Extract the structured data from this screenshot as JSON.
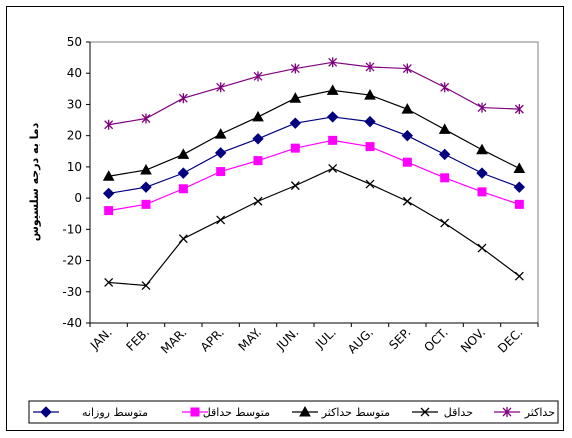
{
  "chart_data": {
    "type": "line",
    "title": "",
    "xlabel": "",
    "ylabel": "دما به درجه سلسيوس",
    "ylim": [
      -40,
      50
    ],
    "yticks": [
      50,
      40,
      30,
      20,
      10,
      0,
      -10,
      -20,
      -30,
      -40
    ],
    "categories": [
      "JAN.",
      "FEB.",
      "MAR.",
      "APR.",
      "MAY.",
      "JUN.",
      "JUL.",
      "AUG.",
      "SEP.",
      "OCT.",
      "NOV.",
      "DEC."
    ],
    "grid": false,
    "legend_position": "bottom",
    "series": [
      {
        "name": "متوسط روزانه",
        "color": "#000080",
        "marker": "diamond",
        "values": [
          1.5,
          3.5,
          8,
          14.5,
          19,
          24,
          26,
          24.5,
          20,
          14,
          8,
          3.5
        ]
      },
      {
        "name": "متوسط حداقل",
        "color": "#ff00ff",
        "marker": "square",
        "values": [
          -4,
          -2,
          3,
          8.5,
          12,
          16,
          18.5,
          16.5,
          11.5,
          6.5,
          2,
          -2
        ]
      },
      {
        "name": "متوسط حداكثر",
        "color": "#000000",
        "marker": "triangle",
        "values": [
          7,
          9,
          14,
          20.5,
          26,
          32,
          34.5,
          33,
          28.5,
          22,
          15.5,
          9.5
        ]
      },
      {
        "name": "حداقل",
        "color": "#000000",
        "marker": "x",
        "values": [
          -27,
          -28,
          -13,
          -7,
          -1,
          4,
          9.5,
          4.5,
          -1,
          -8,
          -16,
          -25
        ]
      },
      {
        "name": "حداكثر",
        "color": "#800080",
        "marker": "star",
        "values": [
          23.5,
          25.5,
          32,
          35.5,
          39,
          41.5,
          43.5,
          42,
          41.5,
          35.5,
          29,
          28.5
        ]
      }
    ]
  }
}
